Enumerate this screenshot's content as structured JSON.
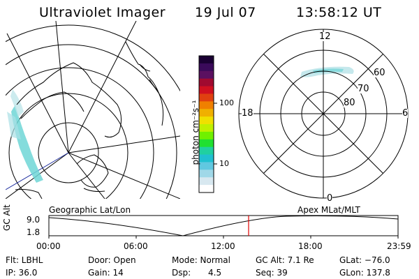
{
  "header": {
    "instrument": "Ultraviolet Imager",
    "date": "19 Jul 07",
    "time": "13:58:12 UT"
  },
  "colorbar": {
    "unit_label": "photon cm⁻²s⁻¹",
    "ticks": [
      "100",
      "10"
    ],
    "colors": [
      "#1a0033",
      "#3a0a5a",
      "#5a1060",
      "#a00a30",
      "#d01020",
      "#e04010",
      "#f08000",
      "#f0b000",
      "#f0e000",
      "#c0f000",
      "#70f000",
      "#20e030",
      "#20d0a0",
      "#20c0d0",
      "#60c8e0",
      "#a0d8e8",
      "#d8e8f0",
      "#ffffff"
    ]
  },
  "left_panel": {
    "label": "Geographic Lat/Lon"
  },
  "right_panel": {
    "label": "Apex  MLat/MLT",
    "mlt_labels": {
      "top": "12",
      "left": "18",
      "right": "6",
      "bottom": "0"
    },
    "lat_labels": [
      "60",
      "70",
      "80"
    ]
  },
  "altitude_plot": {
    "axis_label": "GC Alt",
    "y_ticks": [
      "9.0",
      "1.8"
    ],
    "x_ticks": [
      "00:00",
      "06:00",
      "12:00",
      "18:00",
      "23:59"
    ],
    "marker_color": "#e00000"
  },
  "info": {
    "flt": "Flt: LBHL",
    "ip": "IP: 36.0",
    "door": "Door: Open",
    "gain": "Gain: 14",
    "mode": "Mode: Normal",
    "dsp_label": "Dsp:",
    "dsp_value": "4.5",
    "gc_alt": "GC Alt: 7.1 Re",
    "seq": "Seq: 39",
    "glat": "GLat: −76.0",
    "glon": "GLon: 137.8"
  }
}
